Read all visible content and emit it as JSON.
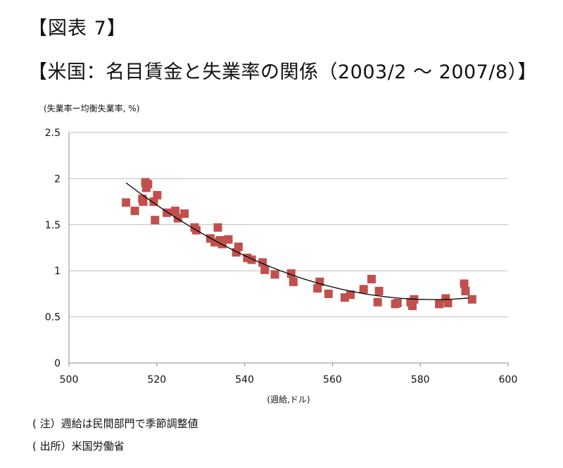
{
  "figure_label": "【図表 7】",
  "figure_title": "【米国：名目賃金と失業率の関係（2003/2 〜 2007/8）】",
  "chart_data": {
    "type": "scatter",
    "ylabel": "(失業率ー均衡失業率, %)",
    "xlabel": "(週給,ドル)",
    "xlim": [
      500,
      600
    ],
    "ylim": [
      0,
      2.5
    ],
    "x_ticks": [
      "500",
      "520",
      "540",
      "560",
      "580",
      "600"
    ],
    "y_ticks": [
      "0",
      "0.5",
      "1",
      "1.5",
      "2",
      "2.5"
    ],
    "grid": "horizontal",
    "marker_color": "#c0504d",
    "trendline": {
      "type": "polynomial-2",
      "color": "#000000",
      "x_range": [
        513,
        591
      ]
    },
    "points": [
      [
        513.0,
        1.74
      ],
      [
        515.0,
        1.65
      ],
      [
        516.7,
        1.78
      ],
      [
        516.9,
        1.75
      ],
      [
        517.4,
        1.96
      ],
      [
        517.6,
        1.9
      ],
      [
        518.0,
        1.94
      ],
      [
        519.3,
        1.75
      ],
      [
        519.6,
        1.55
      ],
      [
        520.1,
        1.82
      ],
      [
        522.3,
        1.63
      ],
      [
        524.2,
        1.65
      ],
      [
        524.8,
        1.57
      ],
      [
        526.3,
        1.62
      ],
      [
        528.6,
        1.47
      ],
      [
        529.0,
        1.44
      ],
      [
        532.2,
        1.35
      ],
      [
        533.2,
        1.31
      ],
      [
        533.9,
        1.47
      ],
      [
        534.4,
        1.33
      ],
      [
        534.9,
        1.29
      ],
      [
        536.3,
        1.34
      ],
      [
        538.1,
        1.2
      ],
      [
        538.6,
        1.26
      ],
      [
        540.6,
        1.14
      ],
      [
        541.6,
        1.12
      ],
      [
        544.1,
        1.09
      ],
      [
        544.6,
        1.01
      ],
      [
        546.9,
        0.96
      ],
      [
        550.6,
        0.97
      ],
      [
        551.1,
        0.88
      ],
      [
        556.6,
        0.81
      ],
      [
        557.1,
        0.88
      ],
      [
        559.1,
        0.75
      ],
      [
        562.8,
        0.71
      ],
      [
        564.1,
        0.74
      ],
      [
        567.1,
        0.8
      ],
      [
        568.9,
        0.91
      ],
      [
        570.3,
        0.66
      ],
      [
        570.6,
        0.78
      ],
      [
        574.3,
        0.64
      ],
      [
        574.8,
        0.65
      ],
      [
        577.8,
        0.66
      ],
      [
        578.2,
        0.62
      ],
      [
        578.6,
        0.69
      ],
      [
        584.3,
        0.64
      ],
      [
        585.8,
        0.7
      ],
      [
        586.3,
        0.65
      ],
      [
        590.0,
        0.86
      ],
      [
        590.3,
        0.78
      ],
      [
        591.8,
        0.69
      ]
    ]
  },
  "notes": {
    "note1": "( 注）週給は民間部門で季節調整値",
    "note2": "( 出所）米国労働省"
  }
}
